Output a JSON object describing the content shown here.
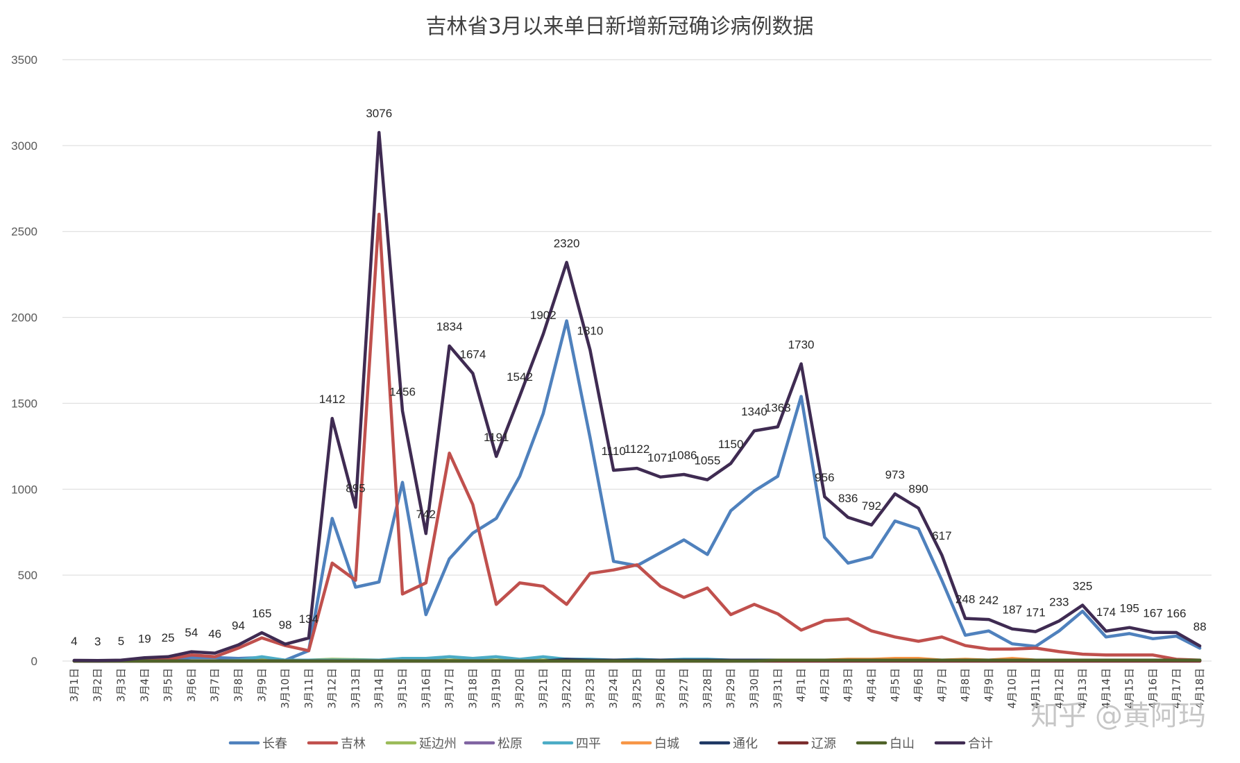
{
  "chart_data": {
    "type": "line",
    "title": "吉林省3月以来单日新增新冠确诊病例数据",
    "ylim": [
      0,
      3500
    ],
    "yticks": [
      0,
      500,
      1000,
      1500,
      2000,
      2500,
      3000,
      3500
    ],
    "grid": true,
    "legend_position": "bottom",
    "categories": [
      "3月1日",
      "3月2日",
      "3月3日",
      "3月4日",
      "3月5日",
      "3月6日",
      "3月7日",
      "3月8日",
      "3月9日",
      "3月10日",
      "3月11日",
      "3月12日",
      "3月13日",
      "3月14日",
      "3月15日",
      "3月16日",
      "3月17日",
      "3月18日",
      "3月19日",
      "3月20日",
      "3月21日",
      "3月22日",
      "3月23日",
      "3月24日",
      "3月25日",
      "3月26日",
      "3月27日",
      "3月28日",
      "3月29日",
      "3月30日",
      "3月31日",
      "4月1日",
      "4月2日",
      "4月3日",
      "4月4日",
      "4月5日",
      "4月6日",
      "4月7日",
      "4月8日",
      "4月9日",
      "4月10日",
      "4月11日",
      "4月12日",
      "4月13日",
      "4月14日",
      "4月15日",
      "4月16日",
      "4月17日",
      "4月18日"
    ],
    "series": [
      {
        "name": "长春",
        "color": "#4f81bd",
        "values": [
          2,
          1,
          1,
          10,
          14,
          20,
          20,
          15,
          20,
          5,
          60,
          830,
          430,
          460,
          1040,
          270,
          595,
          745,
          830,
          1075,
          1440,
          1980,
          1300,
          580,
          555,
          630,
          705,
          620,
          875,
          990,
          1075,
          1540,
          720,
          570,
          605,
          815,
          770,
          470,
          150,
          175,
          100,
          85,
          175,
          290,
          140,
          160,
          130,
          145,
          75
        ]
      },
      {
        "name": "吉林",
        "color": "#c0504d",
        "values": [
          1,
          1,
          2,
          8,
          10,
          35,
          25,
          75,
          135,
          90,
          60,
          570,
          470,
          2600,
          390,
          455,
          1210,
          910,
          330,
          455,
          435,
          330,
          510,
          530,
          560,
          435,
          370,
          425,
          270,
          330,
          275,
          180,
          235,
          245,
          175,
          140,
          115,
          140,
          90,
          70,
          70,
          75,
          55,
          40,
          35,
          35,
          35,
          10,
          5
        ]
      },
      {
        "name": "延边州",
        "color": "#9bbb59",
        "values": [
          0,
          0,
          0,
          0,
          0,
          0,
          0,
          0,
          5,
          5,
          5,
          10,
          8,
          5,
          5,
          5,
          5,
          5,
          5,
          5,
          5,
          5,
          5,
          5,
          5,
          5,
          5,
          5,
          5,
          5,
          5,
          5,
          5,
          5,
          5,
          5,
          5,
          5,
          5,
          5,
          5,
          5,
          5,
          5,
          5,
          5,
          5,
          5,
          5
        ]
      },
      {
        "name": "松原",
        "color": "#8064a2",
        "values": [
          0,
          0,
          0,
          0,
          0,
          0,
          0,
          0,
          0,
          0,
          0,
          0,
          0,
          0,
          0,
          0,
          0,
          0,
          0,
          0,
          0,
          0,
          0,
          0,
          0,
          0,
          0,
          0,
          0,
          0,
          0,
          0,
          0,
          0,
          0,
          0,
          0,
          0,
          0,
          0,
          0,
          0,
          0,
          0,
          0,
          0,
          0,
          0,
          0
        ]
      },
      {
        "name": "四平",
        "color": "#4bacc6",
        "values": [
          0,
          0,
          0,
          0,
          0,
          0,
          0,
          5,
          25,
          5,
          5,
          5,
          5,
          5,
          15,
          15,
          25,
          15,
          25,
          10,
          25,
          10,
          10,
          5,
          10,
          5,
          10,
          10,
          5,
          5,
          5,
          5,
          5,
          5,
          5,
          5,
          5,
          5,
          5,
          5,
          5,
          5,
          5,
          5,
          5,
          5,
          5,
          5,
          5
        ]
      },
      {
        "name": "白城",
        "color": "#f79646",
        "values": [
          0,
          0,
          0,
          0,
          0,
          0,
          0,
          0,
          0,
          0,
          0,
          0,
          0,
          0,
          0,
          0,
          0,
          0,
          0,
          0,
          0,
          0,
          0,
          0,
          0,
          0,
          0,
          0,
          0,
          5,
          5,
          5,
          5,
          10,
          10,
          15,
          15,
          5,
          10,
          5,
          15,
          5,
          5,
          5,
          5,
          5,
          5,
          5,
          5
        ]
      },
      {
        "name": "通化",
        "color": "#1f3864",
        "values": [
          0,
          0,
          0,
          0,
          0,
          0,
          0,
          0,
          0,
          0,
          0,
          0,
          0,
          0,
          0,
          0,
          0,
          0,
          0,
          0,
          0,
          10,
          5,
          5,
          5,
          5,
          5,
          5,
          5,
          5,
          5,
          5,
          5,
          5,
          5,
          5,
          5,
          5,
          5,
          5,
          5,
          5,
          5,
          5,
          5,
          5,
          5,
          5,
          5
        ]
      },
      {
        "name": "辽源",
        "color": "#7b2c2c",
        "values": [
          0,
          0,
          0,
          0,
          0,
          0,
          0,
          0,
          0,
          0,
          0,
          0,
          0,
          0,
          0,
          0,
          0,
          0,
          0,
          0,
          0,
          0,
          0,
          0,
          0,
          0,
          0,
          0,
          0,
          0,
          0,
          0,
          0,
          0,
          0,
          0,
          0,
          0,
          0,
          0,
          0,
          0,
          0,
          0,
          0,
          0,
          0,
          0,
          0
        ]
      },
      {
        "name": "白山",
        "color": "#4f6228",
        "values": [
          0,
          0,
          0,
          0,
          0,
          0,
          0,
          0,
          0,
          0,
          0,
          0,
          0,
          0,
          0,
          0,
          0,
          0,
          0,
          0,
          0,
          0,
          0,
          0,
          0,
          0,
          0,
          0,
          0,
          0,
          5,
          5,
          5,
          5,
          5,
          5,
          5,
          5,
          5,
          5,
          5,
          5,
          5,
          5,
          5,
          5,
          5,
          5,
          5
        ]
      },
      {
        "name": "合计",
        "color": "#3f2b52",
        "labeled": true,
        "values": [
          4,
          3,
          5,
          19,
          25,
          54,
          46,
          94,
          165,
          98,
          134,
          1412,
          895,
          3076,
          1456,
          742,
          1834,
          1674,
          1191,
          1542,
          1902,
          2320,
          1810,
          1110,
          1122,
          1071,
          1086,
          1055,
          1150,
          1340,
          1363,
          1730,
          956,
          836,
          792,
          973,
          890,
          617,
          248,
          242,
          187,
          171,
          233,
          325,
          174,
          195,
          167,
          166,
          88
        ]
      }
    ]
  },
  "watermark": "知乎 @黄阿玛"
}
